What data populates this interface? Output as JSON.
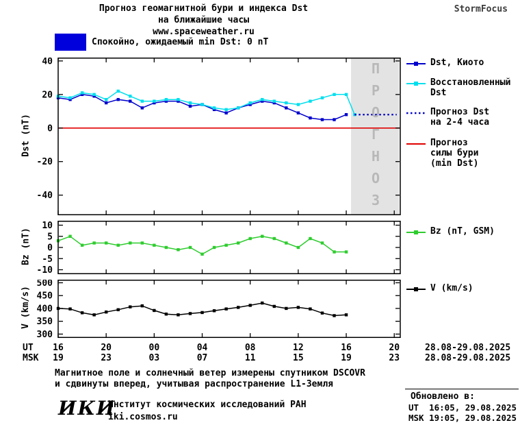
{
  "header": {
    "title_line1": "Прогноз геомагнитной бури и индекса Dst",
    "title_line2": "на ближайшие часы",
    "website": "www.spaceweather.ru",
    "brand": "StormFocus"
  },
  "status": {
    "text": "Спокойно, ожидаемый min Dst: 0 nT",
    "swatch_color": "#0000dd"
  },
  "forecast_watermark": "ПРОГНОЗ",
  "legend_dst": [
    {
      "lines": [
        "Dst, Киото"
      ],
      "color": "#0000cc",
      "style": "solid-square"
    },
    {
      "lines": [
        "Восстановленный",
        "Dst"
      ],
      "color": "#00dfee",
      "style": "solid-square"
    },
    {
      "lines": [
        "Прогноз Dst",
        "на 2-4 часа"
      ],
      "color": "#0000cc",
      "style": "dotted"
    },
    {
      "lines": [
        "Прогноз",
        "силы бури",
        "(min Dst)"
      ],
      "color": "#e00000",
      "style": "solid"
    }
  ],
  "legend_bz": {
    "label": "Bz (nT, GSM)",
    "color": "#2ecc2e"
  },
  "legend_v": {
    "label": "V (km/s)",
    "color": "#000000"
  },
  "x_axis": {
    "ut_row_label": "UT",
    "msk_row_label": "MSK",
    "tick_hours": [
      0,
      4,
      8,
      12,
      16,
      20,
      24,
      28
    ],
    "ut_ticks": [
      "16",
      "20",
      "00",
      "04",
      "08",
      "12",
      "16",
      "20"
    ],
    "msk_ticks": [
      "19",
      "23",
      "03",
      "07",
      "11",
      "15",
      "19",
      "23"
    ],
    "ut_date_range": "28.08-29.08.2025",
    "msk_date_range": "28.08-29.08.2025"
  },
  "footer": {
    "note_line1": "Магнитное поле и солнечный ветер измерены спутником DSCOVR",
    "note_line2": "и сдвинуты вперед, учитывая распространение L1-Земля",
    "logo": "ИКИ",
    "institute": "Институт космических исследований РАН",
    "institute_url": "iki.cosmos.ru",
    "updated_label": "Обновлено в:",
    "updated_ut": "UT  16:05, 29.08.2025",
    "updated_msk": "MSK 19:05, 29.08.2025"
  },
  "colors": {
    "kyoto_blue": "#0000cc",
    "restored_cyan": "#00dfee",
    "storm_red": "#e00000",
    "bz_green": "#2ecc2e",
    "v_black": "#000000",
    "forecast_band": "#e3e3e3",
    "watermark_gray": "#b8b8b8"
  },
  "chart_data": [
    {
      "type": "line",
      "name": "dst-panel",
      "ylabel": "Dst (nT)",
      "x_unit": "hours since 16:00 UT 28.08.2025",
      "xlim": [
        0,
        28.5
      ],
      "ylim": [
        -52,
        42
      ],
      "yticks": [
        40,
        20,
        0,
        -20,
        -40
      ],
      "xticks": [
        0,
        4,
        8,
        12,
        16,
        20,
        24,
        28
      ],
      "forecast_band": [
        24.4,
        28.45
      ],
      "band_color": "#e3e3e3",
      "hlines": [
        {
          "y": 0,
          "color": "#e00000",
          "label": "Прогноз силы бури (min Dst) = 0 nT"
        }
      ],
      "series": [
        {
          "name": "Dst, Киото",
          "color": "#0000cc",
          "marker": true,
          "x": [
            0,
            1,
            2,
            3,
            4,
            5,
            6,
            7,
            8,
            9,
            10,
            11,
            12,
            13,
            14,
            15,
            16,
            17,
            18,
            19,
            20,
            21,
            22,
            23,
            24
          ],
          "y": [
            18,
            17,
            20,
            19,
            15,
            17,
            16,
            12,
            15,
            16,
            16,
            13,
            14,
            11,
            9,
            12,
            14,
            16,
            15,
            12,
            9,
            6,
            5,
            5,
            8
          ]
        },
        {
          "name": "Восстановленный Dst",
          "color": "#00dfee",
          "marker": true,
          "x": [
            0,
            1,
            2,
            3,
            4,
            5,
            6,
            7,
            8,
            9,
            10,
            11,
            12,
            13,
            14,
            15,
            16,
            17,
            18,
            19,
            20,
            21,
            22,
            23,
            24,
            24.7
          ],
          "y": [
            19,
            18,
            21,
            20,
            17,
            22,
            19,
            16,
            16,
            17,
            17,
            15,
            14,
            12,
            11,
            12,
            15,
            17,
            16,
            15,
            14,
            16,
            18,
            20,
            20,
            8
          ]
        },
        {
          "name": "Прогноз Dst на 2-4 часа",
          "color": "#0000cc",
          "marker": false,
          "dash": "2.5,3.5",
          "width": 2.4,
          "x": [
            24.7,
            28.2
          ],
          "y": [
            8,
            8
          ]
        }
      ]
    },
    {
      "type": "line",
      "name": "bz-panel",
      "ylabel": "Bz (nT)",
      "xlim": [
        0,
        28.5
      ],
      "ylim": [
        -12,
        12
      ],
      "yticks": [
        10,
        5,
        0,
        -5,
        -10
      ],
      "xticks": [
        0,
        4,
        8,
        12,
        16,
        20,
        24,
        28
      ],
      "series": [
        {
          "name": "Bz (nT, GSM)",
          "color": "#2ecc2e",
          "marker": true,
          "x": [
            0,
            1,
            2,
            3,
            4,
            5,
            6,
            7,
            8,
            9,
            10,
            11,
            12,
            13,
            14,
            15,
            16,
            17,
            18,
            19,
            20,
            21,
            22,
            23,
            24
          ],
          "y": [
            3,
            5,
            1,
            2,
            2,
            1,
            2,
            2,
            1,
            0,
            -1,
            0,
            -3,
            0,
            1,
            2,
            4,
            5,
            4,
            2,
            0,
            4,
            2,
            -2,
            -2
          ]
        }
      ]
    },
    {
      "type": "line",
      "name": "v-panel",
      "ylabel": "V (km/s)",
      "xlim": [
        0,
        28.5
      ],
      "ylim": [
        285,
        512
      ],
      "yticks": [
        500,
        450,
        400,
        350,
        300
      ],
      "xticks": [
        0,
        4,
        8,
        12,
        16,
        20,
        24,
        28
      ],
      "series": [
        {
          "name": "V (km/s)",
          "color": "#000000",
          "marker": true,
          "x": [
            0,
            1,
            2,
            3,
            4,
            5,
            6,
            7,
            8,
            9,
            10,
            11,
            12,
            13,
            14,
            15,
            16,
            17,
            18,
            19,
            20,
            21,
            22,
            23,
            24
          ],
          "y": [
            400,
            398,
            383,
            375,
            386,
            395,
            406,
            410,
            392,
            378,
            375,
            380,
            384,
            391,
            398,
            404,
            412,
            421,
            408,
            400,
            404,
            398,
            382,
            372,
            375
          ]
        }
      ]
    }
  ]
}
